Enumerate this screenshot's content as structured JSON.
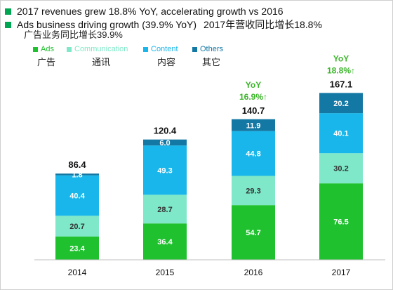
{
  "header": {
    "line1": "2017 revenues grew 18.8% YoY, accelerating growth vs 2016",
    "line2_en": "Ads business driving growth (39.9% YoY)",
    "line2_cn": "2017年营收同比增长18.8%",
    "line3_cn": "广告业务同比增长39.9%",
    "bullet_color": "#00a651"
  },
  "legend_cn": [
    "广告",
    "通讯",
    "内容",
    "其它"
  ],
  "chart_data": {
    "type": "bar",
    "stacked": true,
    "categories": [
      "2014",
      "2015",
      "2016",
      "2017"
    ],
    "series": [
      {
        "name": "Ads",
        "color": "#1fc12f",
        "label_color": "#ffffff",
        "values": [
          23.4,
          36.4,
          54.7,
          76.5
        ]
      },
      {
        "name": "Communication",
        "color": "#7ee8c8",
        "label_color": "#333333",
        "values": [
          20.7,
          28.7,
          29.3,
          30.2
        ]
      },
      {
        "name": "Content",
        "color": "#18b6ea",
        "label_color": "#ffffff",
        "values": [
          40.4,
          49.3,
          44.8,
          40.1
        ]
      },
      {
        "name": "Others",
        "color": "#1478a4",
        "label_color": "#ffffff",
        "values": [
          1.8,
          6.0,
          11.9,
          20.2
        ]
      }
    ],
    "totals": [
      "86.4",
      "120.4",
      "140.7",
      "167.1"
    ],
    "labels": [
      [
        "23.4",
        "36.4",
        "54.7",
        "76.5"
      ],
      [
        "20.7",
        "28.7",
        "29.3",
        "30.2"
      ],
      [
        "40.4",
        "49.3",
        "44.8",
        "40.1"
      ],
      [
        "1.8",
        "6.0",
        "11.9",
        "20.2"
      ]
    ],
    "annotations": [
      {
        "category": "2016",
        "lines": [
          "YoY",
          "16.9%↑"
        ],
        "color": "#3cb52b"
      },
      {
        "category": "2017",
        "lines": [
          "YoY",
          "18.8%↑"
        ],
        "color": "#3cb52b"
      }
    ],
    "ylim": [
      0,
      175
    ],
    "grid": false,
    "legend_position": "top-left"
  }
}
